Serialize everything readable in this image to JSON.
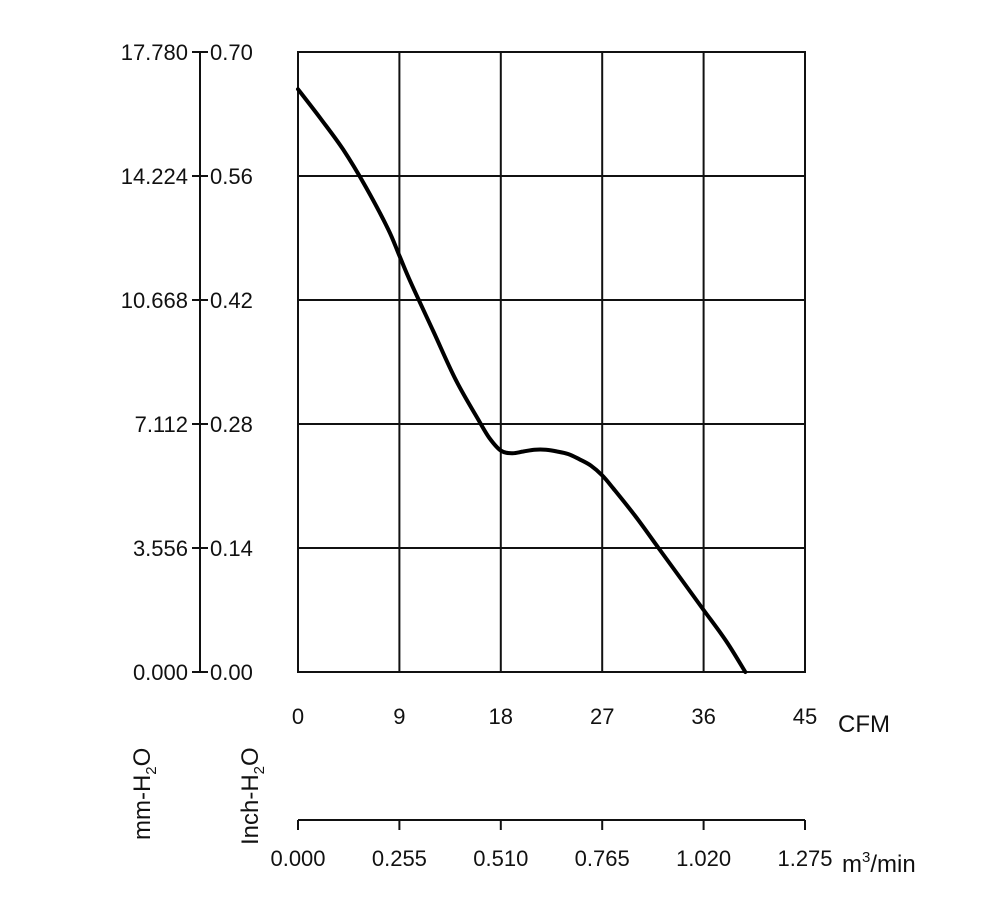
{
  "chart_data": {
    "type": "line",
    "title": "",
    "x_axis": {
      "label": "CFM",
      "range": [
        0,
        45
      ],
      "ticks": [
        "0",
        "9",
        "18",
        "27",
        "36",
        "45"
      ]
    },
    "x2_axis": {
      "label_main": "m",
      "label_sup": "3",
      "label_tail": "/min",
      "range": [
        0,
        1.275
      ],
      "ticks": [
        "0.000",
        "0.255",
        "0.510",
        "0.765",
        "1.020",
        "1.275"
      ]
    },
    "y_axis_inch": {
      "label_main": "Inch-H",
      "label_sub": "2",
      "label_tail": "O",
      "range": [
        0,
        0.7
      ],
      "ticks": [
        "0.00",
        "0.14",
        "0.28",
        "0.42",
        "0.56",
        "0.70"
      ]
    },
    "y_axis_mm": {
      "label_main": "mm-H",
      "label_sub": "2",
      "label_tail": "O",
      "range": [
        0,
        17.78
      ],
      "ticks": [
        "0.000",
        "3.556",
        "7.112",
        "10.668",
        "14.224",
        "17.780"
      ]
    },
    "grid": true,
    "series": [
      {
        "x": [
          0,
          2,
          4,
          6,
          8,
          9,
          10,
          12,
          14,
          16,
          17,
          18,
          19,
          20,
          21,
          22,
          23,
          24,
          25,
          26,
          27,
          28,
          30,
          32,
          34,
          36,
          38,
          39.7
        ],
        "y": [
          0.658,
          0.625,
          0.59,
          0.548,
          0.5,
          0.47,
          0.44,
          0.385,
          0.33,
          0.285,
          0.264,
          0.25,
          0.247,
          0.249,
          0.251,
          0.251,
          0.249,
          0.246,
          0.24,
          0.233,
          0.222,
          0.207,
          0.175,
          0.14,
          0.105,
          0.07,
          0.035,
          0.0
        ]
      }
    ]
  }
}
